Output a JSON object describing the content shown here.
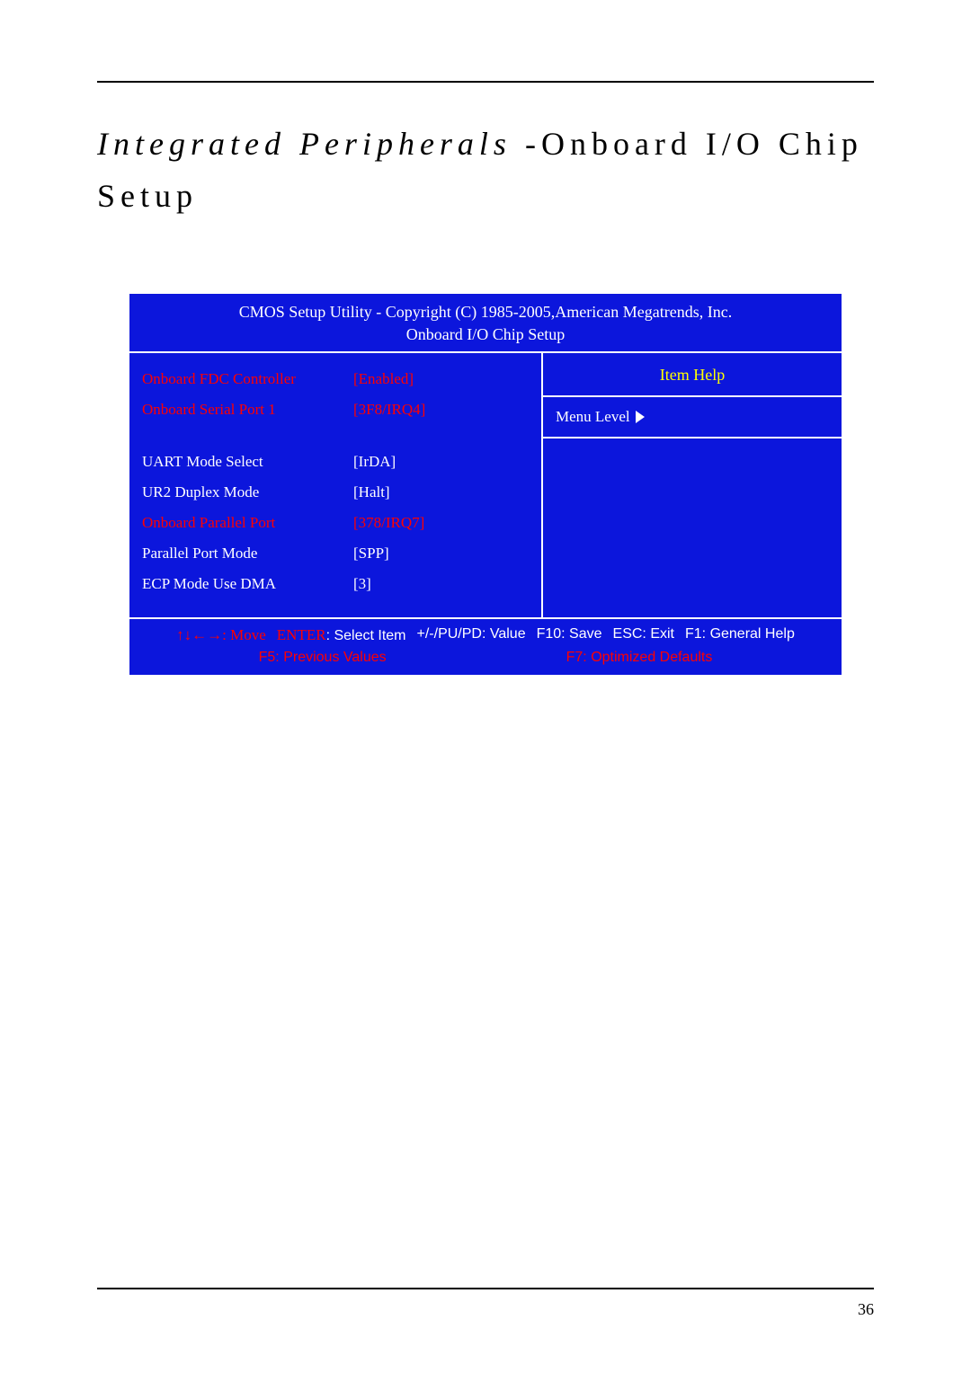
{
  "heading": {
    "italic": "Integrated Peripherals ",
    "rest": "-Onboard I/O Chip Setup"
  },
  "bios": {
    "header_line1": "CMOS Setup Utility - Copyright (C) 1985-2005,American Megatrends, Inc.",
    "header_line2": "Onboard I/O Chip Setup",
    "help_header": "Item Help",
    "menu_level": "Menu Level",
    "settings": [
      {
        "label": "Onboard FDC Controller",
        "value": "[Enabled]",
        "color": "red"
      },
      {
        "label": "Onboard Serial Port 1",
        "value": "[3F8/IRQ4]",
        "color": "red"
      },
      {
        "label": "",
        "value": "",
        "color": "spacer"
      },
      {
        "label": "UART Mode Select",
        "value": "[IrDA]",
        "color": "white"
      },
      {
        "label": "UR2 Duplex Mode",
        "value": "[Halt]",
        "color": "white"
      },
      {
        "label": "Onboard Parallel Port",
        "value": "[378/IRQ7]",
        "color": "red"
      },
      {
        "label": "Parallel Port Mode",
        "value": "[SPP]",
        "color": "white"
      },
      {
        "label": "ECP Mode Use DMA",
        "value": "[3]",
        "color": "white"
      }
    ],
    "footer": {
      "arrows": "↑↓←→",
      "move": ": Move",
      "enter": "ENTER",
      "select_item": ": Select Item",
      "value_keys": "+/-/PU/PD: Value",
      "f10": "F10: Save",
      "esc": "ESC: Exit",
      "f1": "F1: General Help",
      "f5": "F5: Previous Values",
      "f7": "F7: Optimized Defaults"
    }
  },
  "page_number": "36",
  "colors": {
    "bios_bg": "#0c16dc",
    "red_text": "#ff0000",
    "yellow_text": "#ffff00",
    "white": "#ffffff"
  }
}
